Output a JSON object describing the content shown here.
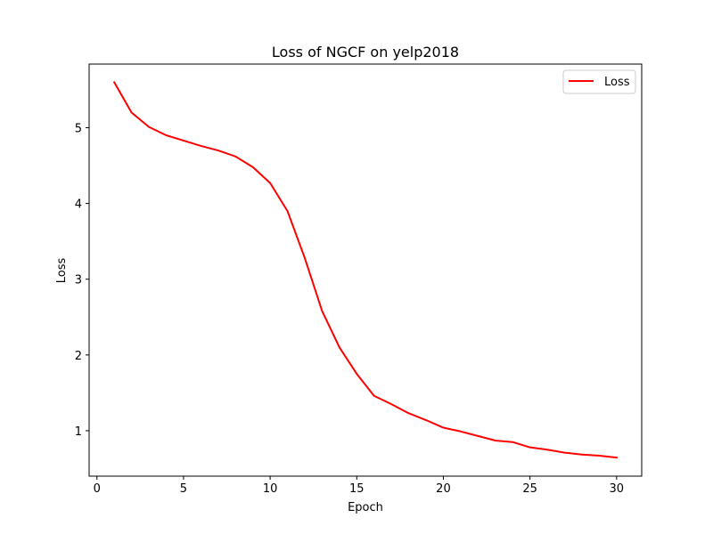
{
  "chart_data": {
    "type": "line",
    "title": "Loss of NGCF on yelp2018",
    "xlabel": "Epoch",
    "ylabel": "Loss",
    "xlim": [
      -0.45,
      31.45
    ],
    "ylim": [
      0.4,
      5.84
    ],
    "xticks": [
      0,
      5,
      10,
      15,
      20,
      25,
      30
    ],
    "yticks": [
      1,
      2,
      3,
      4,
      5
    ],
    "grid": false,
    "legend_position": "top-right",
    "series": [
      {
        "name": "Loss",
        "color": "#ff0000",
        "x": [
          1,
          2,
          3,
          4,
          5,
          6,
          7,
          8,
          9,
          10,
          11,
          12,
          13,
          14,
          15,
          16,
          17,
          18,
          19,
          20,
          21,
          22,
          23,
          24,
          25,
          26,
          27,
          28,
          29,
          30
        ],
        "y": [
          5.6,
          5.2,
          5.01,
          4.9,
          4.83,
          4.76,
          4.7,
          4.62,
          4.48,
          4.27,
          3.9,
          3.28,
          2.58,
          2.1,
          1.75,
          1.46,
          1.35,
          1.23,
          1.14,
          1.04,
          0.99,
          0.93,
          0.87,
          0.85,
          0.78,
          0.75,
          0.71,
          0.685,
          0.67,
          0.645
        ]
      }
    ]
  }
}
